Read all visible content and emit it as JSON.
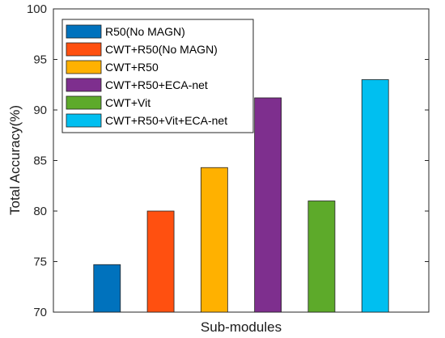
{
  "chart_data": {
    "type": "bar",
    "xlabel": "Sub-modules",
    "ylabel": "Total Accuracy(%)",
    "ylim": [
      70,
      100
    ],
    "yticks": [
      70,
      75,
      80,
      85,
      90,
      95,
      100
    ],
    "grid": false,
    "legend_position": "top-left",
    "series": [
      {
        "name": "R50(No MAGN)",
        "value": 74.7,
        "color": "#0072BD"
      },
      {
        "name": "CWT+R50(No MAGN)",
        "value": 80.0,
        "color": "#FF5010"
      },
      {
        "name": "CWT+R50",
        "value": 84.3,
        "color": "#FFB100"
      },
      {
        "name": "CWT+R50+ECA-net",
        "value": 91.2,
        "color": "#7E2F8E"
      },
      {
        "name": "CWT+Vit",
        "value": 81.0,
        "color": "#5DAA2A"
      },
      {
        "name": "CWT+R50+Vit+ECA-net",
        "value": 93.0,
        "color": "#00BFF0"
      }
    ]
  }
}
